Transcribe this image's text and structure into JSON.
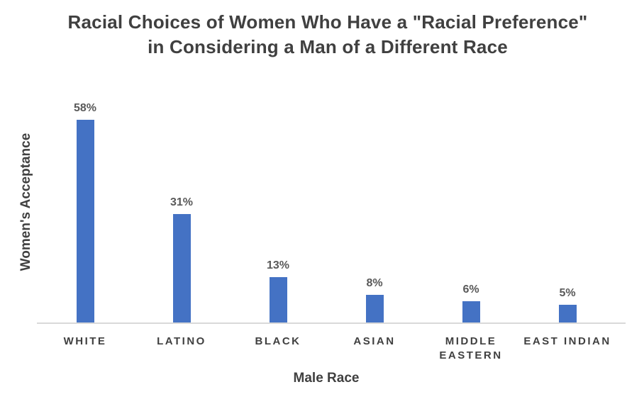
{
  "chart_data": {
    "type": "bar",
    "title": "Racial Choices of Women Who Have a \"Racial Preference\" in Considering a Man of a Different Race",
    "title_lines": [
      "Racial Choices of Women Who Have a \"Racial Preference\"",
      "in Considering a Man of a Different Race"
    ],
    "categories": [
      "WHITE",
      "LATINO",
      "BLACK",
      "ASIAN",
      "MIDDLE EASTERN",
      "EAST INDIAN"
    ],
    "values": [
      58,
      31,
      13,
      8,
      6,
      5
    ],
    "data_labels": [
      "58%",
      "31%",
      "13%",
      "8%",
      "6%",
      "5%"
    ],
    "xlabel": "Male Race",
    "ylabel": "Women's Acceptance",
    "ylim": [
      0,
      70
    ],
    "grid": false,
    "legend": "none",
    "bar_color": "#4472C4",
    "axis_line_color": "#D9D9D9",
    "title_color": "#404040",
    "data_label_color": "#595959",
    "category_label_color": "#404040"
  }
}
